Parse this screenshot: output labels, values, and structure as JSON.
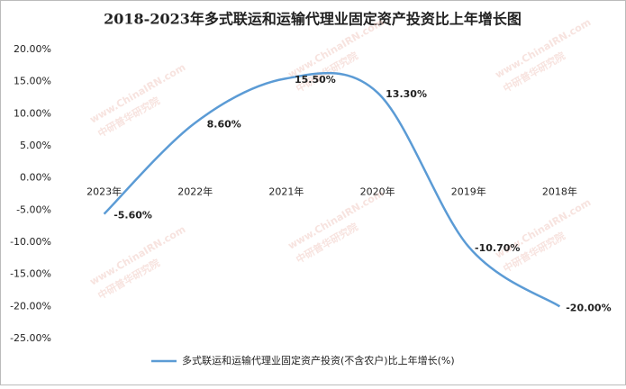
{
  "chart_data": {
    "type": "line",
    "title": "2018-2023年多式联运和运输代理业固定资产投资比上年增长图",
    "categories": [
      "2023年",
      "2022年",
      "2021年",
      "2020年",
      "2019年",
      "2018年"
    ],
    "series": [
      {
        "name": "多式联运和运输代理业固定资产投资(不含农户)比上年增长(%)",
        "color": "#5b9bd5",
        "values": [
          -5.6,
          8.6,
          15.5,
          13.3,
          -10.7,
          -20.0
        ],
        "value_labels": [
          "-5.60%",
          "8.60%",
          "15.50%",
          "13.30%",
          "-10.70%",
          "-20.00%"
        ]
      }
    ],
    "ylim": [
      -25,
      20
    ],
    "yticks": [
      {
        "value": -25,
        "label": "-25.00%"
      },
      {
        "value": -20,
        "label": "-20.00%"
      },
      {
        "value": -15,
        "label": "-15.00%"
      },
      {
        "value": -10,
        "label": "-10.00%"
      },
      {
        "value": -5,
        "label": "-5.00%"
      },
      {
        "value": 0,
        "label": "0.00%"
      },
      {
        "value": 5,
        "label": "5.00%"
      },
      {
        "value": 10,
        "label": "10.00%"
      },
      {
        "value": 15,
        "label": "15.00%"
      },
      {
        "value": 20,
        "label": "20.00%"
      }
    ],
    "grid": false,
    "smooth": true,
    "legend": "bottom",
    "watermark": {
      "site": "www.ChinaIRN.com",
      "name": "中研普华研究院"
    }
  }
}
